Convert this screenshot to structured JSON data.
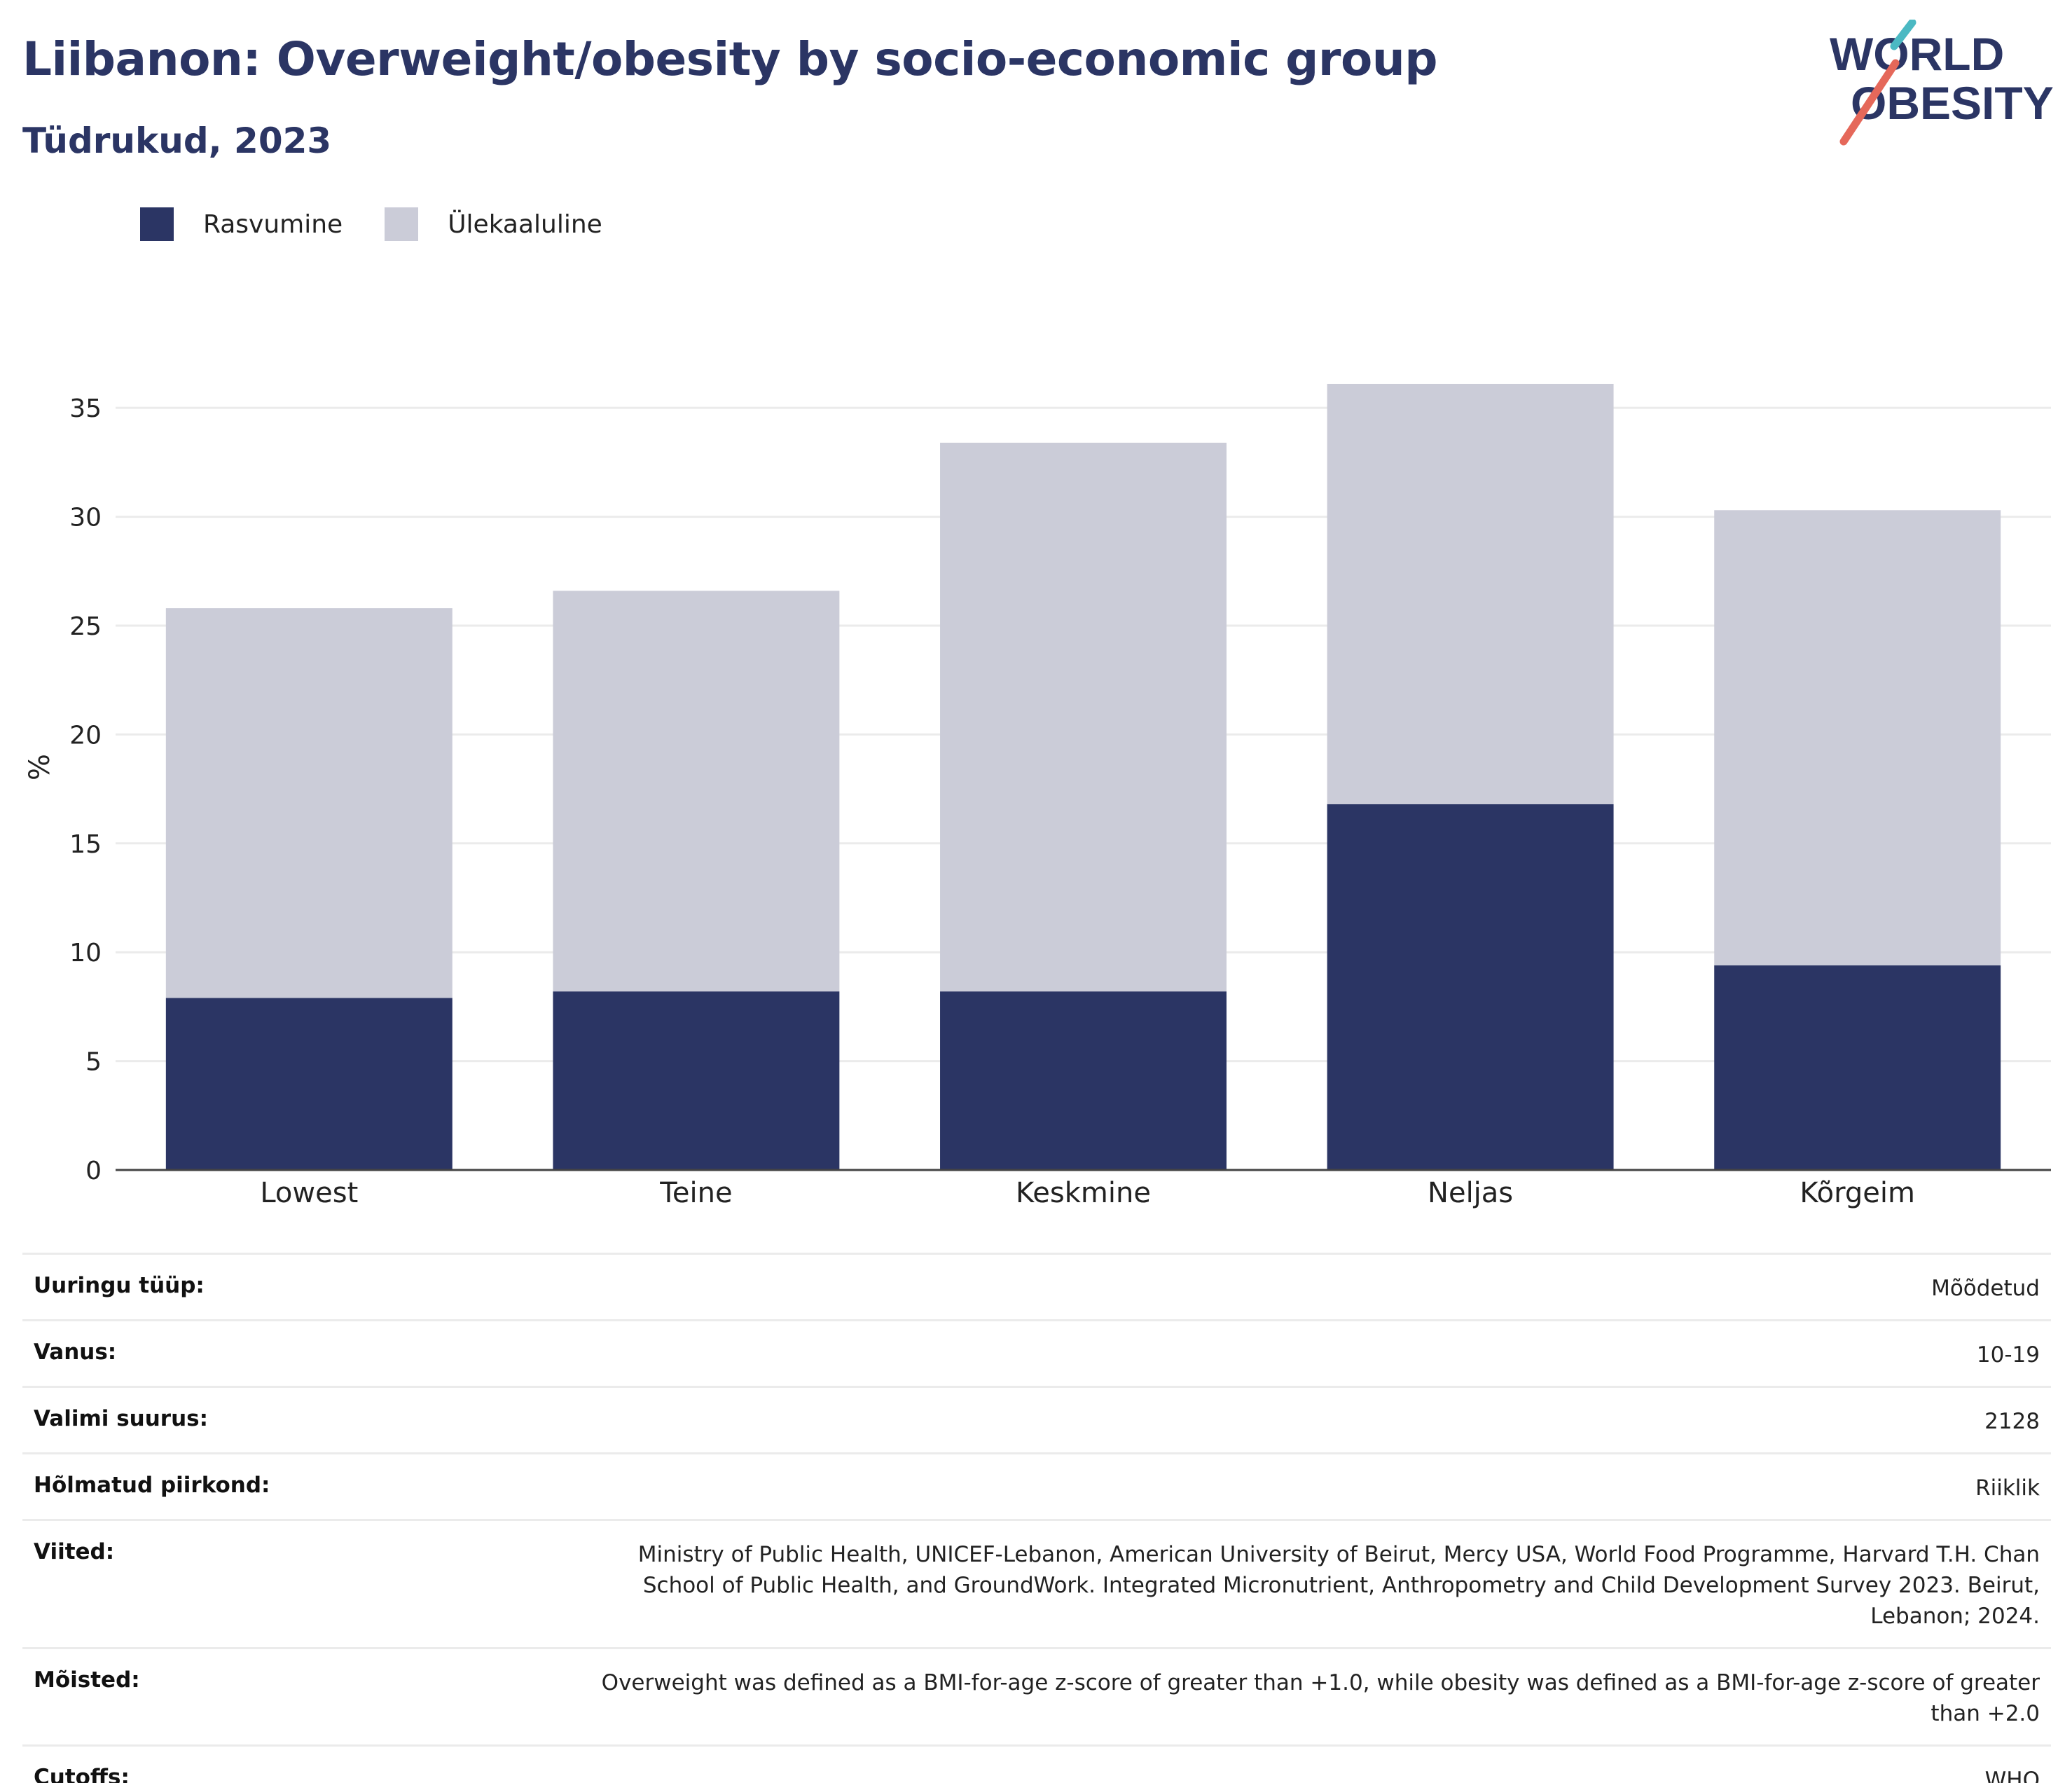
{
  "header": {
    "title": "Liibanon: Overweight/obesity by socio-economic group",
    "subtitle": "Tüdrukud, 2023"
  },
  "logo": {
    "line1": "WORLD",
    "line2": "OBESITY"
  },
  "colors": {
    "obesity": "#2b3564",
    "overweight": "#cbccd8",
    "title": "#2b3564",
    "axis": "#444444",
    "grid": "#ebebeb"
  },
  "chart_data": {
    "type": "bar",
    "stacked": true,
    "categories": [
      "Lowest",
      "Teine",
      "Keskmine",
      "Neljas",
      "Kõrgeim"
    ],
    "series": [
      {
        "name": "Rasvumine",
        "values": [
          7.9,
          8.2,
          8.2,
          16.8,
          9.4
        ]
      },
      {
        "name": "Ülekaaluline",
        "values": [
          17.9,
          18.4,
          25.2,
          19.3,
          20.9
        ]
      }
    ],
    "ylabel": "%",
    "ylim": [
      0,
      37
    ],
    "yticks": [
      0,
      5,
      10,
      15,
      20,
      25,
      30,
      35
    ],
    "grid": true,
    "legend_position": "top-left"
  },
  "meta": [
    {
      "key": "Uuringu tüüp:",
      "value": "Mõõdetud"
    },
    {
      "key": "Vanus:",
      "value": "10-19"
    },
    {
      "key": "Valimi suurus:",
      "value": "2128"
    },
    {
      "key": "Hõlmatud piirkond:",
      "value": "Riiklik"
    },
    {
      "key": "Viited:",
      "value": "Ministry of Public Health, UNICEF-Lebanon, American University of Beirut, Mercy USA, World Food Programme, Harvard T.H. Chan School of Public Health, and GroundWork. Integrated Micronutrient, Anthropometry and Child Development Survey 2023. Beirut, Lebanon; 2024."
    },
    {
      "key": "Mõisted:",
      "value": "Overweight was defined as a BMI-for-age z-score of greater than +1.0, while obesity was defined as a BMI-for-age z-score of greater than +2.0"
    },
    {
      "key": "Cutoffs:",
      "value": "WHO"
    }
  ]
}
